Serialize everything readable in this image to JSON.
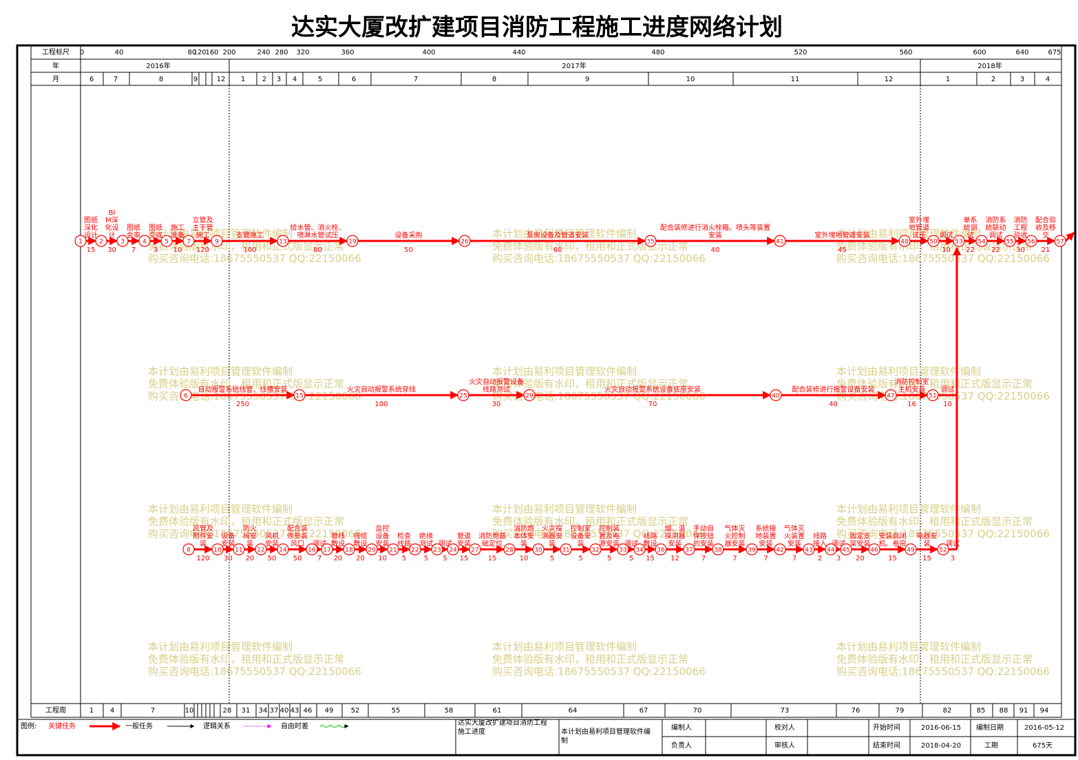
{
  "title": "达实大厦改扩建项目消防工程施工进度网络计划",
  "header": {
    "scale_label": "工程标尺",
    "scale": [
      0,
      40,
      80,
      120,
      160,
      200,
      240,
      280,
      320,
      360,
      400,
      440,
      480,
      520,
      560,
      600,
      640,
      675
    ],
    "year_label": "年",
    "years": [
      "2016年",
      "2017年",
      "2018年"
    ],
    "month_label": "月",
    "months": [
      "6",
      "7",
      "8",
      "9",
      "12",
      "1",
      "2",
      "3",
      "4",
      "5",
      "6",
      "7",
      "8",
      "9",
      "10",
      "11",
      "12",
      "1",
      "2",
      "3",
      "4"
    ],
    "week_label": "工程周",
    "weeks": [
      1,
      4,
      7,
      10,
      28,
      31,
      34,
      37,
      40,
      43,
      46,
      49,
      52,
      55,
      58,
      61,
      64,
      67,
      70,
      73,
      76,
      79,
      82,
      85,
      88,
      91,
      94
    ]
  },
  "rows": [
    {
      "nodes": [
        1,
        2,
        3,
        4,
        5,
        7,
        9,
        13,
        19,
        26,
        35,
        41,
        48,
        50,
        53,
        54,
        55,
        56,
        57
      ],
      "tasks": [
        {
          "label": "图纸深化设计",
          "duration": 15
        },
        {
          "label": "BIM深化设计",
          "duration": 30
        },
        {
          "label": "图纸会审",
          "duration": 7
        },
        {
          "label": "图纸交底",
          "duration": 3
        },
        {
          "label": "施工准备",
          "duration": 10
        },
        {
          "label": "立管及主干管施工",
          "duration": 120
        },
        {
          "label": "支管施工",
          "duration": 100
        },
        {
          "label": "给水管、消火栓、喷淋水管试压",
          "duration": 80
        },
        {
          "label": "设备采购",
          "duration": 50
        },
        {
          "label": "泵房设备及管道安装",
          "duration": 60
        },
        {
          "label": "配合装修进行消火栓箱、喷头等装置安装",
          "duration": 40
        },
        {
          "label": "室外埋地管道安装",
          "duration": 45
        },
        {
          "label": "室外埋地管道试压",
          "duration": null
        },
        {
          "label": "调试",
          "duration": 10
        },
        {
          "label": "单系统调试",
          "duration": 22
        },
        {
          "label": "消防系统联动调试",
          "duration": 22
        },
        {
          "label": "消防工程验收",
          "duration": 30
        },
        {
          "label": "配合验收及移交",
          "duration": 21
        }
      ]
    },
    {
      "nodes": [
        6,
        15,
        25,
        29,
        40,
        47,
        51
      ],
      "tasks": [
        {
          "label": "自动报警系统线管、线槽安装",
          "duration": 250
        },
        {
          "label": "火灾自动报警系统穿线",
          "duration": 100
        },
        {
          "label": "火灾自动报警设备线路测试",
          "duration": 30
        },
        {
          "label": "火灾自动报警系统设备底座安装",
          "duration": 70
        },
        {
          "label": "配合装修进行报警设备安装",
          "duration": 40
        },
        {
          "label": "消防控制室主机安装",
          "duration": 16
        }
      ],
      "join": {
        "label": "调试",
        "duration": 10
      }
    },
    {
      "nodes": [
        8,
        10,
        11,
        12,
        14,
        16,
        17,
        18,
        20,
        21,
        22,
        23,
        24,
        27,
        28,
        30,
        31,
        32,
        33,
        34,
        36,
        37,
        38,
        39,
        42,
        43,
        44,
        45,
        46,
        49,
        52
      ],
      "tasks": [
        {
          "label": "风管及附件安装",
          "duration": 120
        },
        {
          "label": "设备安装",
          "duration": 30
        },
        {
          "label": "防火阀安装",
          "duration": 20
        },
        {
          "label": "风机安装",
          "duration": 50
        },
        {
          "label": "配合装修安装风口",
          "duration": 50
        },
        {
          "label": "调试",
          "duration": 7
        },
        {
          "label": "管线敷设",
          "duration": 20
        },
        {
          "label": "线缆敷设",
          "duration": 20
        },
        {
          "label": "监控设备安装",
          "duration": 10
        },
        {
          "label": "检查线路",
          "duration": 5
        },
        {
          "label": "绝缘测试",
          "duration": 5
        },
        {
          "label": "调试",
          "duration": 5
        },
        {
          "label": "管道安装",
          "duration": 15
        },
        {
          "label": "消防炮基础定位",
          "duration": 15
        },
        {
          "label": "消防炮本体安装",
          "duration": 10
        },
        {
          "label": "火灾探测器安装",
          "duration": 5
        },
        {
          "label": "控制室设备安装",
          "duration": 5
        },
        {
          "label": "控制装置及电源安装",
          "duration": 5
        },
        {
          "label": "调试",
          "duration": 5
        },
        {
          "label": "线路敷设",
          "duration": 15
        },
        {
          "label": "烟、温探测器安装",
          "duration": 12
        },
        {
          "label": "手动自保按钮的安装",
          "duration": 7
        },
        {
          "label": "气体灭火控制器安装",
          "duration": 7
        },
        {
          "label": "系统接地装置安装",
          "duration": 7
        },
        {
          "label": "气体灭火装置安装",
          "duration": 7
        },
        {
          "label": "线路接入",
          "duration": 2
        },
        {
          "label": "调试",
          "duration": 3
        },
        {
          "label": "固定支架安装",
          "duration": 20
        },
        {
          "label": "安装启闭机、卷帘",
          "duration": 15
        },
        {
          "label": "电器安装",
          "duration": 15
        }
      ],
      "join": {
        "label": "调试",
        "duration": 3
      }
    }
  ],
  "watermark": [
    "本计划由易利项目管理软件编制",
    "免费体验版有水印，租用和正式版显示正常",
    "购买咨询电话:18675550537 QQ:22150066"
  ],
  "legend": {
    "title": "图例:",
    "critical": "关键任务",
    "normal": "一般任务",
    "logic": "逻辑关系",
    "float": "自由时差"
  },
  "footer": {
    "project": "达实大厦改扩建项目消防工程施工进度",
    "note": "本计划由易利项目管理软件编制",
    "author_label": "编制人",
    "owner_label": "负责人",
    "checker_label": "校对人",
    "reviewer_label": "审核人",
    "start_label": "开始时间",
    "start": "2016-06-15",
    "date_label": "编制日期",
    "date": "2016-05-12",
    "end_label": "结束时间",
    "end": "2018-04-20",
    "duration_label": "工期",
    "duration": "675天"
  }
}
